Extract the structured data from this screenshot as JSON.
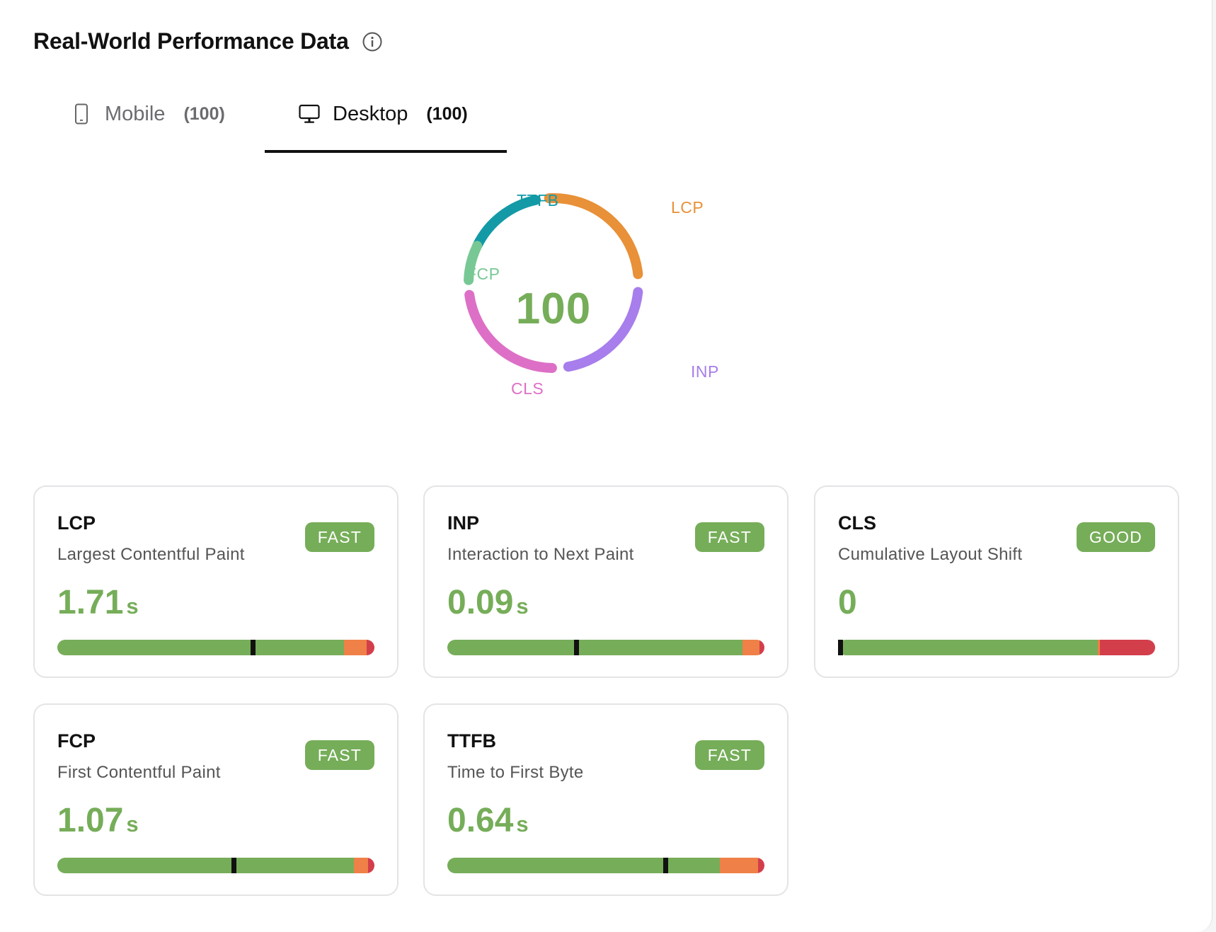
{
  "header": {
    "title": "Real-World Performance Data",
    "info_icon": "info-icon"
  },
  "tabs": [
    {
      "label": "Mobile",
      "count": "(100)",
      "icon": "mobile-phone-icon",
      "active": false
    },
    {
      "label": "Desktop",
      "count": "(100)",
      "icon": "desktop-monitor-icon",
      "active": true
    }
  ],
  "gauge": {
    "score": "100",
    "labels": {
      "ttfb": "TTFB",
      "lcp": "LCP",
      "fcp": "FCP",
      "inp": "INP",
      "cls": "CLS"
    },
    "colors": {
      "ttfb": "#139aa6",
      "lcp": "#e89138",
      "fcp": "#78c895",
      "inp": "#a77eec",
      "cls": "#dd70c6",
      "score": "#76ad59"
    }
  },
  "colors": {
    "good": "#76ad59",
    "needs_improvement": "#ef8047",
    "poor": "#d33e4b",
    "marker": "#111111"
  },
  "metrics": [
    {
      "abbr": "LCP",
      "name": "Largest Contentful Paint",
      "badge": "FAST",
      "value": "1.71",
      "unit": "s",
      "dist": [
        0.905,
        0.07,
        0.025
      ],
      "marker": 0.61
    },
    {
      "abbr": "INP",
      "name": "Interaction to Next Paint",
      "badge": "FAST",
      "value": "0.09",
      "unit": "s",
      "dist": [
        0.93,
        0.055,
        0.015
      ],
      "marker": 0.4
    },
    {
      "abbr": "CLS",
      "name": "Cumulative Layout Shift",
      "badge": "GOOD",
      "value": "0",
      "unit": "",
      "dist": [
        0.82,
        0.005,
        0.175
      ],
      "marker": 0.0
    },
    {
      "abbr": "FCP",
      "name": "First Contentful Paint",
      "badge": "FAST",
      "value": "1.07",
      "unit": "s",
      "dist": [
        0.935,
        0.045,
        0.02
      ],
      "marker": 0.55
    },
    {
      "abbr": "TTFB",
      "name": "Time to First Byte",
      "badge": "FAST",
      "value": "0.64",
      "unit": "s",
      "dist": [
        0.86,
        0.12,
        0.02
      ],
      "marker": 0.68
    }
  ]
}
